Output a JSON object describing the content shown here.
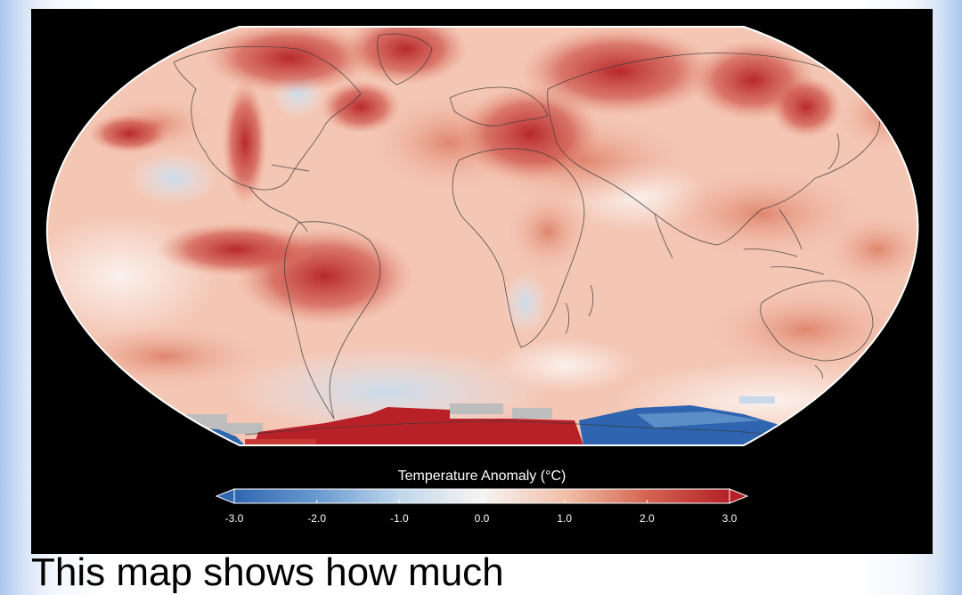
{
  "legend": {
    "title": "Temperature Anomaly (°C)",
    "ticks": [
      "-3.0",
      "-2.0",
      "-1.0",
      "0.0",
      "1.0",
      "2.0",
      "3.0"
    ],
    "range": [
      -3.0,
      3.0
    ],
    "colors": {
      "cold": "#2f66b0",
      "cool": "#9cc0e2",
      "neutral": "#f7f4f2",
      "warm": "#eda98f",
      "hot": "#b41f26"
    }
  },
  "caption": "This map shows how much"
}
